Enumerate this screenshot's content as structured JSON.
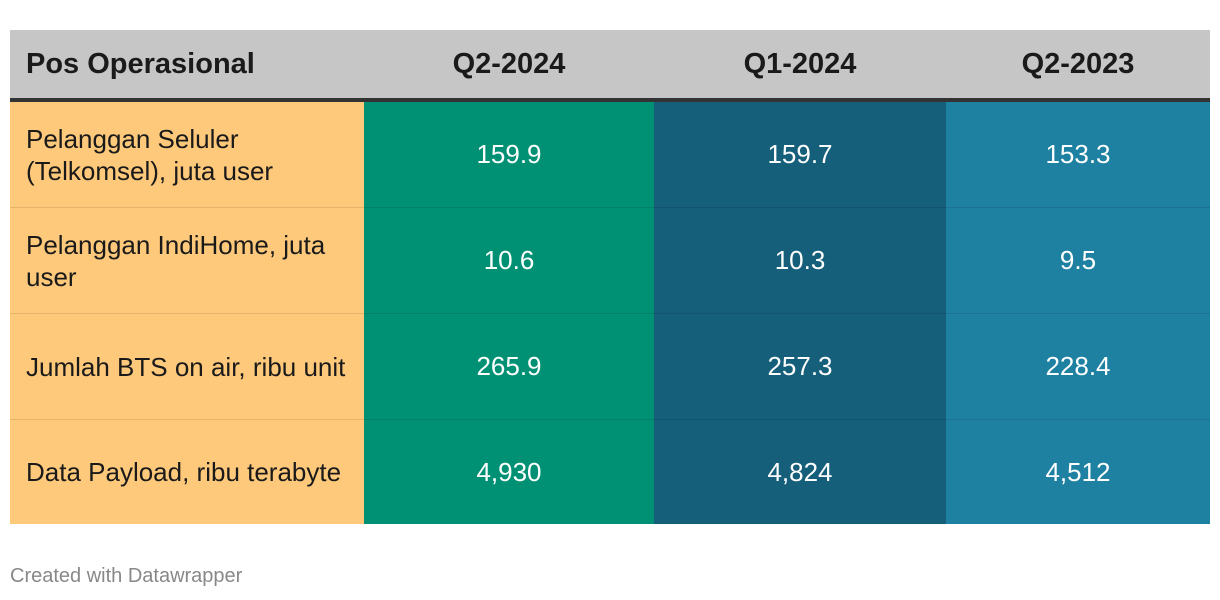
{
  "chart_data": {
    "type": "table",
    "header": {
      "label": "Pos Operasional",
      "columns": [
        "Q2-2024",
        "Q1-2024",
        "Q2-2023"
      ]
    },
    "rows": [
      {
        "label": "Pelanggan Seluler (Telkomsel), juta user",
        "values": [
          "159.9",
          "159.7",
          "153.3"
        ]
      },
      {
        "label": "Pelanggan IndiHome, juta user",
        "values": [
          "10.6",
          "10.3",
          "9.5"
        ]
      },
      {
        "label": "Jumlah BTS on air, ribu unit",
        "values": [
          "265.9",
          "257.3",
          "228.4"
        ]
      },
      {
        "label": "Data Payload, ribu terabyte",
        "values": [
          "4,930",
          "4,824",
          "4,512"
        ]
      }
    ],
    "column_colors": [
      "#009174",
      "#155f7a",
      "#1e81a2"
    ],
    "label_column_color": "#fec97a",
    "header_color": "#c6c6c6"
  },
  "footer": {
    "credit": "Created with Datawrapper"
  }
}
